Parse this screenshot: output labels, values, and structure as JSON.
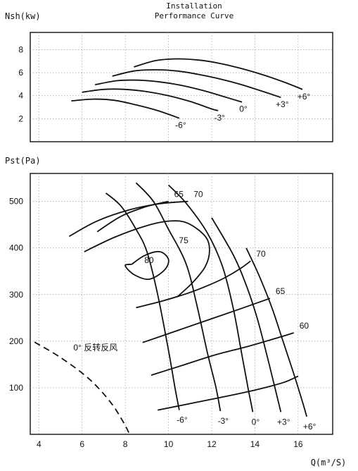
{
  "chart_data": [
    {
      "type": "line",
      "title": "Installation",
      "subtitle": "Performance Curve",
      "ylabel": "Nsh(kw)",
      "xlim": [
        3.6,
        17.6
      ],
      "ylim": [
        0,
        9.5
      ],
      "yticks": [
        2,
        4,
        6,
        8
      ],
      "series": [
        {
          "name": "-6°",
          "x": [
            5.5,
            6.5,
            7.5,
            8.5,
            9.5,
            10.5
          ],
          "y": [
            3.55,
            3.7,
            3.6,
            3.2,
            2.7,
            2.05
          ]
        },
        {
          "name": "-3°",
          "x": [
            6.0,
            7.0,
            8.0,
            9.0,
            10.0,
            11.0,
            12.0,
            12.3
          ],
          "y": [
            4.3,
            4.55,
            4.55,
            4.35,
            4.0,
            3.5,
            2.85,
            2.7
          ]
        },
        {
          "name": "0°",
          "x": [
            6.6,
            7.6,
            8.6,
            9.6,
            10.6,
            11.6,
            12.6,
            13.4
          ],
          "y": [
            4.95,
            5.3,
            5.35,
            5.2,
            4.9,
            4.45,
            3.9,
            3.45
          ]
        },
        {
          "name": "+3°",
          "x": [
            7.4,
            8.4,
            9.4,
            10.4,
            11.4,
            12.4,
            13.4,
            14.4,
            15.2
          ],
          "y": [
            5.7,
            6.15,
            6.25,
            6.15,
            5.85,
            5.45,
            4.95,
            4.35,
            3.85
          ]
        },
        {
          "name": "+6°",
          "x": [
            8.4,
            9.4,
            10.4,
            11.4,
            12.4,
            13.4,
            14.4,
            15.4,
            16.2
          ],
          "y": [
            6.5,
            7.05,
            7.2,
            7.1,
            6.8,
            6.35,
            5.8,
            5.15,
            4.55
          ]
        }
      ]
    },
    {
      "type": "line",
      "ylabel": "Pst(Pa)",
      "xlabel": "Q(m³/S)",
      "xlim": [
        3.6,
        17.6
      ],
      "ylim": [
        0,
        560
      ],
      "xticks": [
        4,
        6,
        8,
        10,
        12,
        14,
        16
      ],
      "yticks": [
        100,
        200,
        300,
        400,
        500
      ],
      "blade_angle_curves": [
        {
          "name": "-6°",
          "x": [
            7.1,
            7.8,
            8.5,
            9.0,
            9.5,
            10.0,
            10.3,
            10.5
          ],
          "y": [
            518,
            490,
            440,
            392,
            300,
            180,
            100,
            52
          ]
        },
        {
          "name": "-3°",
          "x": [
            8.5,
            9.3,
            10.0,
            10.8,
            11.3,
            11.8,
            12.2,
            12.4
          ],
          "y": [
            540,
            500,
            440,
            368,
            280,
            175,
            100,
            50
          ]
        },
        {
          "name": "0°",
          "x": [
            10.0,
            10.8,
            11.8,
            12.5,
            13.0,
            13.4,
            13.7,
            13.9
          ],
          "y": [
            535,
            497,
            432,
            360,
            270,
            170,
            95,
            48
          ]
        },
        {
          "name": "+3°",
          "x": [
            12.0,
            13.0,
            13.6,
            14.1,
            14.5,
            14.9,
            15.2
          ],
          "y": [
            465,
            385,
            320,
            250,
            180,
            105,
            48
          ]
        },
        {
          "name": "+6°",
          "x": [
            13.6,
            14.2,
            14.8,
            15.3,
            15.8,
            16.2,
            16.4
          ],
          "y": [
            400,
            340,
            270,
            200,
            130,
            70,
            38
          ]
        }
      ],
      "efficiency_curves": [
        {
          "label": "65",
          "x": [
            6.7,
            7.8,
            8.9,
            9.6,
            10.0
          ],
          "y": [
            435,
            468,
            488,
            496,
            500
          ]
        },
        {
          "label": "70",
          "x": [
            5.4,
            6.7,
            8.2,
            9.6,
            10.9
          ],
          "y": [
            425,
            458,
            482,
            495,
            500
          ]
        },
        {
          "label": "75",
          "x": [
            6.1,
            7.5,
            9.0,
            10.1,
            10.9,
            11.7,
            11.9,
            11.7,
            11.1,
            10.4
          ],
          "y": [
            392,
            423,
            448,
            458,
            453,
            425,
            395,
            360,
            325,
            295
          ]
        },
        {
          "label": "80",
          "x": [
            8.3,
            8.9,
            9.6,
            10.0,
            9.8,
            9.1,
            8.4,
            8.0,
            8.3
          ],
          "y": [
            365,
            384,
            392,
            375,
            352,
            333,
            343,
            362,
            365
          ]
        },
        {
          "label": "70",
          "x": [
            8.5,
            9.7,
            10.9,
            11.8,
            12.6,
            13.3,
            13.8
          ],
          "y": [
            272,
            286,
            303,
            319,
            336,
            355,
            372
          ]
        },
        {
          "label": "65",
          "x": [
            8.8,
            10.3,
            11.8,
            13.3,
            14.7
          ],
          "y": [
            197,
            221,
            245,
            269,
            292
          ]
        },
        {
          "label": "60",
          "x": [
            9.2,
            10.7,
            12.2,
            13.7,
            15.1,
            15.8
          ],
          "y": [
            127,
            149,
            171,
            189,
            208,
            218
          ]
        },
        {
          "label": "",
          "x": [
            9.5,
            11.0,
            12.5,
            14.0,
            15.3,
            16.0
          ],
          "y": [
            52,
            66,
            80,
            95,
            111,
            125
          ]
        }
      ],
      "reverse_curve": {
        "label": "0°  反转反风",
        "x": [
          3.8,
          5.0,
          6.3,
          7.3,
          7.9,
          8.2
        ],
        "y": [
          198,
          165,
          120,
          70,
          27,
          0
        ]
      }
    }
  ]
}
